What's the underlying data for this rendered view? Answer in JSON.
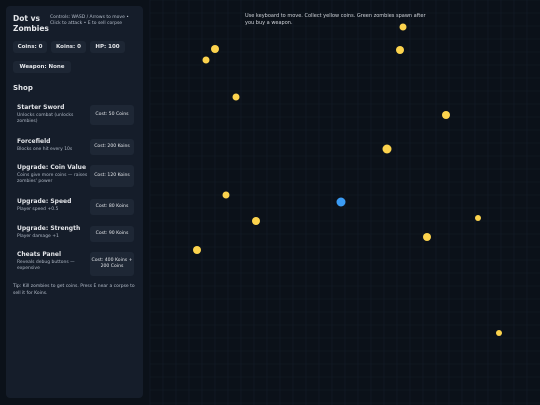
{
  "header": {
    "title": "Dot vs Zombies",
    "controls": "Controls: WASD / Arrows to move • Click to attack • E to sell corpse"
  },
  "stats": [
    "Coins: 0",
    "Koins: 0",
    "HP: 100"
  ],
  "weapon": "Weapon: None",
  "shop": {
    "title": "Shop",
    "items": [
      {
        "name": "Starter Sword",
        "desc": "Unlocks combat (unlocks zombies)",
        "cost": "Cost: 50 Coins"
      },
      {
        "name": "Forcefield",
        "desc": "Blocks one hit every 10s",
        "cost": "Cost: 200 Koins"
      },
      {
        "name": "Upgrade: Coin Value",
        "desc": "Coins give more coins — raises zombies' power",
        "cost": "Cost: 120 Koins"
      },
      {
        "name": "Upgrade: Speed",
        "desc": "Player speed +0.5",
        "cost": "Cost: 80 Koins"
      },
      {
        "name": "Upgrade: Strength",
        "desc": "Player damage +1",
        "cost": "Cost: 90 Koins"
      },
      {
        "name": "Cheats Panel",
        "desc": "Reveals debug buttons — expensive",
        "cost": "Cost: 400 Koins + 200 Coins"
      }
    ]
  },
  "tip": "Tip: Kill zombies to get coins. Press E near a corpse to sell it for Koins.",
  "message": "Use keyboard to move. Collect yellow coins. Green zombies spawn after you buy a weapon."
}
